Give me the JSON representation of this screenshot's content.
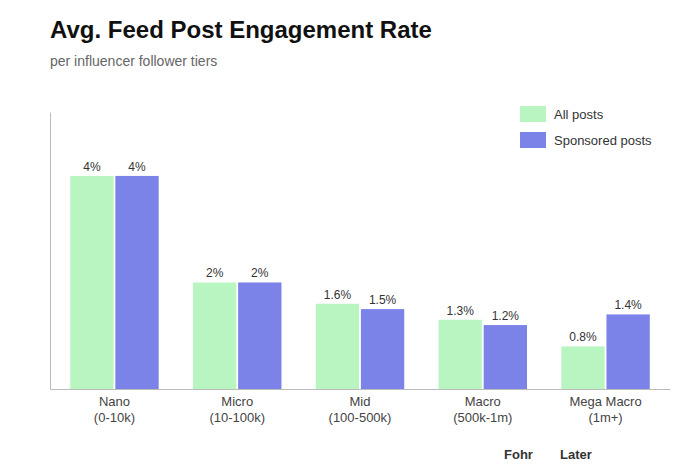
{
  "chart_data": {
    "type": "bar",
    "title": "Avg. Feed Post Engagement Rate",
    "subtitle": "per influencer follower tiers",
    "categories": [
      "Nano\n(0-10k)",
      "Micro\n(10-100k)",
      "Mid\n(100-500k)",
      "Macro\n(500k-1m)",
      "Mega Macro\n(1m+)"
    ],
    "series": [
      {
        "name": "All posts",
        "color": "#b8f5c0",
        "values": [
          4.0,
          2.0,
          1.6,
          1.3,
          0.8
        ],
        "value_labels": [
          "4%",
          "2%",
          "1.6%",
          "1.3%",
          "0.8%"
        ]
      },
      {
        "name": "Sponsored posts",
        "color": "#7b82e8",
        "values": [
          4.0,
          2.0,
          1.5,
          1.2,
          1.4
        ],
        "value_labels": [
          "4%",
          "2%",
          "1.5%",
          "1.2%",
          "1.4%"
        ]
      }
    ],
    "ylim": [
      0,
      5.2
    ],
    "data_labels": true,
    "tick_labels": "x",
    "legend": "upper right",
    "grid": false,
    "annotations": [
      "Fohr",
      "Later"
    ]
  }
}
